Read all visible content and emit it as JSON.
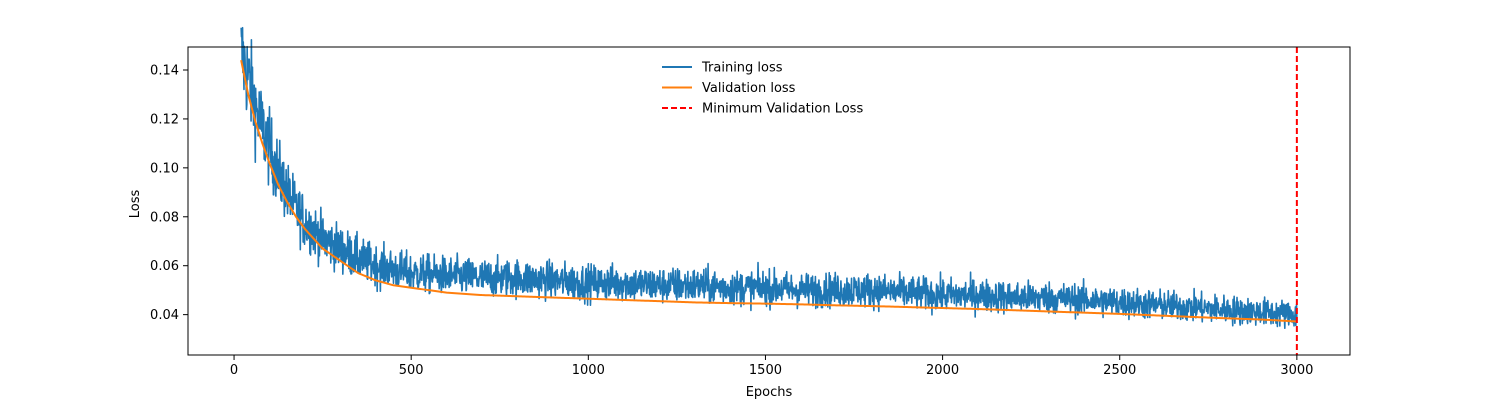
{
  "chart_data": {
    "type": "line",
    "title": "",
    "xlabel": "Epochs",
    "ylabel": "Loss",
    "xlim": [
      -130,
      3150
    ],
    "ylim": [
      0.0235,
      0.1494
    ],
    "x_ticks": [
      0,
      500,
      1000,
      1500,
      2000,
      2500,
      3000
    ],
    "x_tick_labels": [
      "0",
      "500",
      "1000",
      "1500",
      "2000",
      "2500",
      "3000"
    ],
    "y_ticks": [
      0.04,
      0.06,
      0.08,
      0.1,
      0.12,
      0.14
    ],
    "y_tick_labels": [
      "0.04",
      "0.06",
      "0.08",
      "0.10",
      "0.12",
      "0.14"
    ],
    "grid": false,
    "legend_position": "top-center",
    "series": [
      {
        "name": "Training loss",
        "color": "#1f77b4",
        "style": "solid",
        "noisy": true,
        "x": [
          20,
          40,
          60,
          80,
          100,
          125,
          150,
          175,
          200,
          250,
          300,
          350,
          400,
          500,
          600,
          700,
          800,
          900,
          1000,
          1100,
          1200,
          1300,
          1400,
          1500,
          1600,
          1700,
          1800,
          1900,
          2000,
          2100,
          2200,
          2300,
          2400,
          2500,
          2600,
          2700,
          2800,
          2900,
          3000
        ],
        "y": [
          0.147,
          0.137,
          0.125,
          0.116,
          0.108,
          0.098,
          0.09,
          0.083,
          0.078,
          0.071,
          0.067,
          0.063,
          0.06,
          0.057,
          0.056,
          0.055,
          0.055,
          0.054,
          0.053,
          0.053,
          0.052,
          0.052,
          0.051,
          0.051,
          0.05,
          0.05,
          0.05,
          0.049,
          0.048,
          0.048,
          0.047,
          0.047,
          0.046,
          0.045,
          0.044,
          0.043,
          0.042,
          0.041,
          0.04
        ]
      },
      {
        "name": "Validation loss",
        "color": "#ff7f0e",
        "style": "solid",
        "x": [
          20,
          40,
          60,
          80,
          100,
          125,
          150,
          175,
          200,
          250,
          300,
          350,
          400,
          450,
          500,
          600,
          700,
          800,
          900,
          1000,
          1100,
          1200,
          1300,
          1400,
          1500,
          1600,
          1700,
          1800,
          1900,
          2000,
          2100,
          2200,
          2300,
          2400,
          2500,
          2600,
          2700,
          2800,
          2900,
          3000
        ],
        "y": [
          0.144,
          0.13,
          0.119,
          0.11,
          0.102,
          0.093,
          0.086,
          0.08,
          0.075,
          0.067,
          0.062,
          0.057,
          0.054,
          0.052,
          0.051,
          0.049,
          0.048,
          0.0475,
          0.047,
          0.0465,
          0.046,
          0.0455,
          0.045,
          0.0447,
          0.0445,
          0.0442,
          0.0438,
          0.0435,
          0.0431,
          0.0427,
          0.0423,
          0.0418,
          0.0413,
          0.0408,
          0.0403,
          0.0397,
          0.0391,
          0.0385,
          0.038,
          0.0372
        ]
      },
      {
        "name": "Minimum Validation Loss",
        "color": "#ff0000",
        "style": "dashed",
        "vline_x": 3000
      }
    ]
  }
}
